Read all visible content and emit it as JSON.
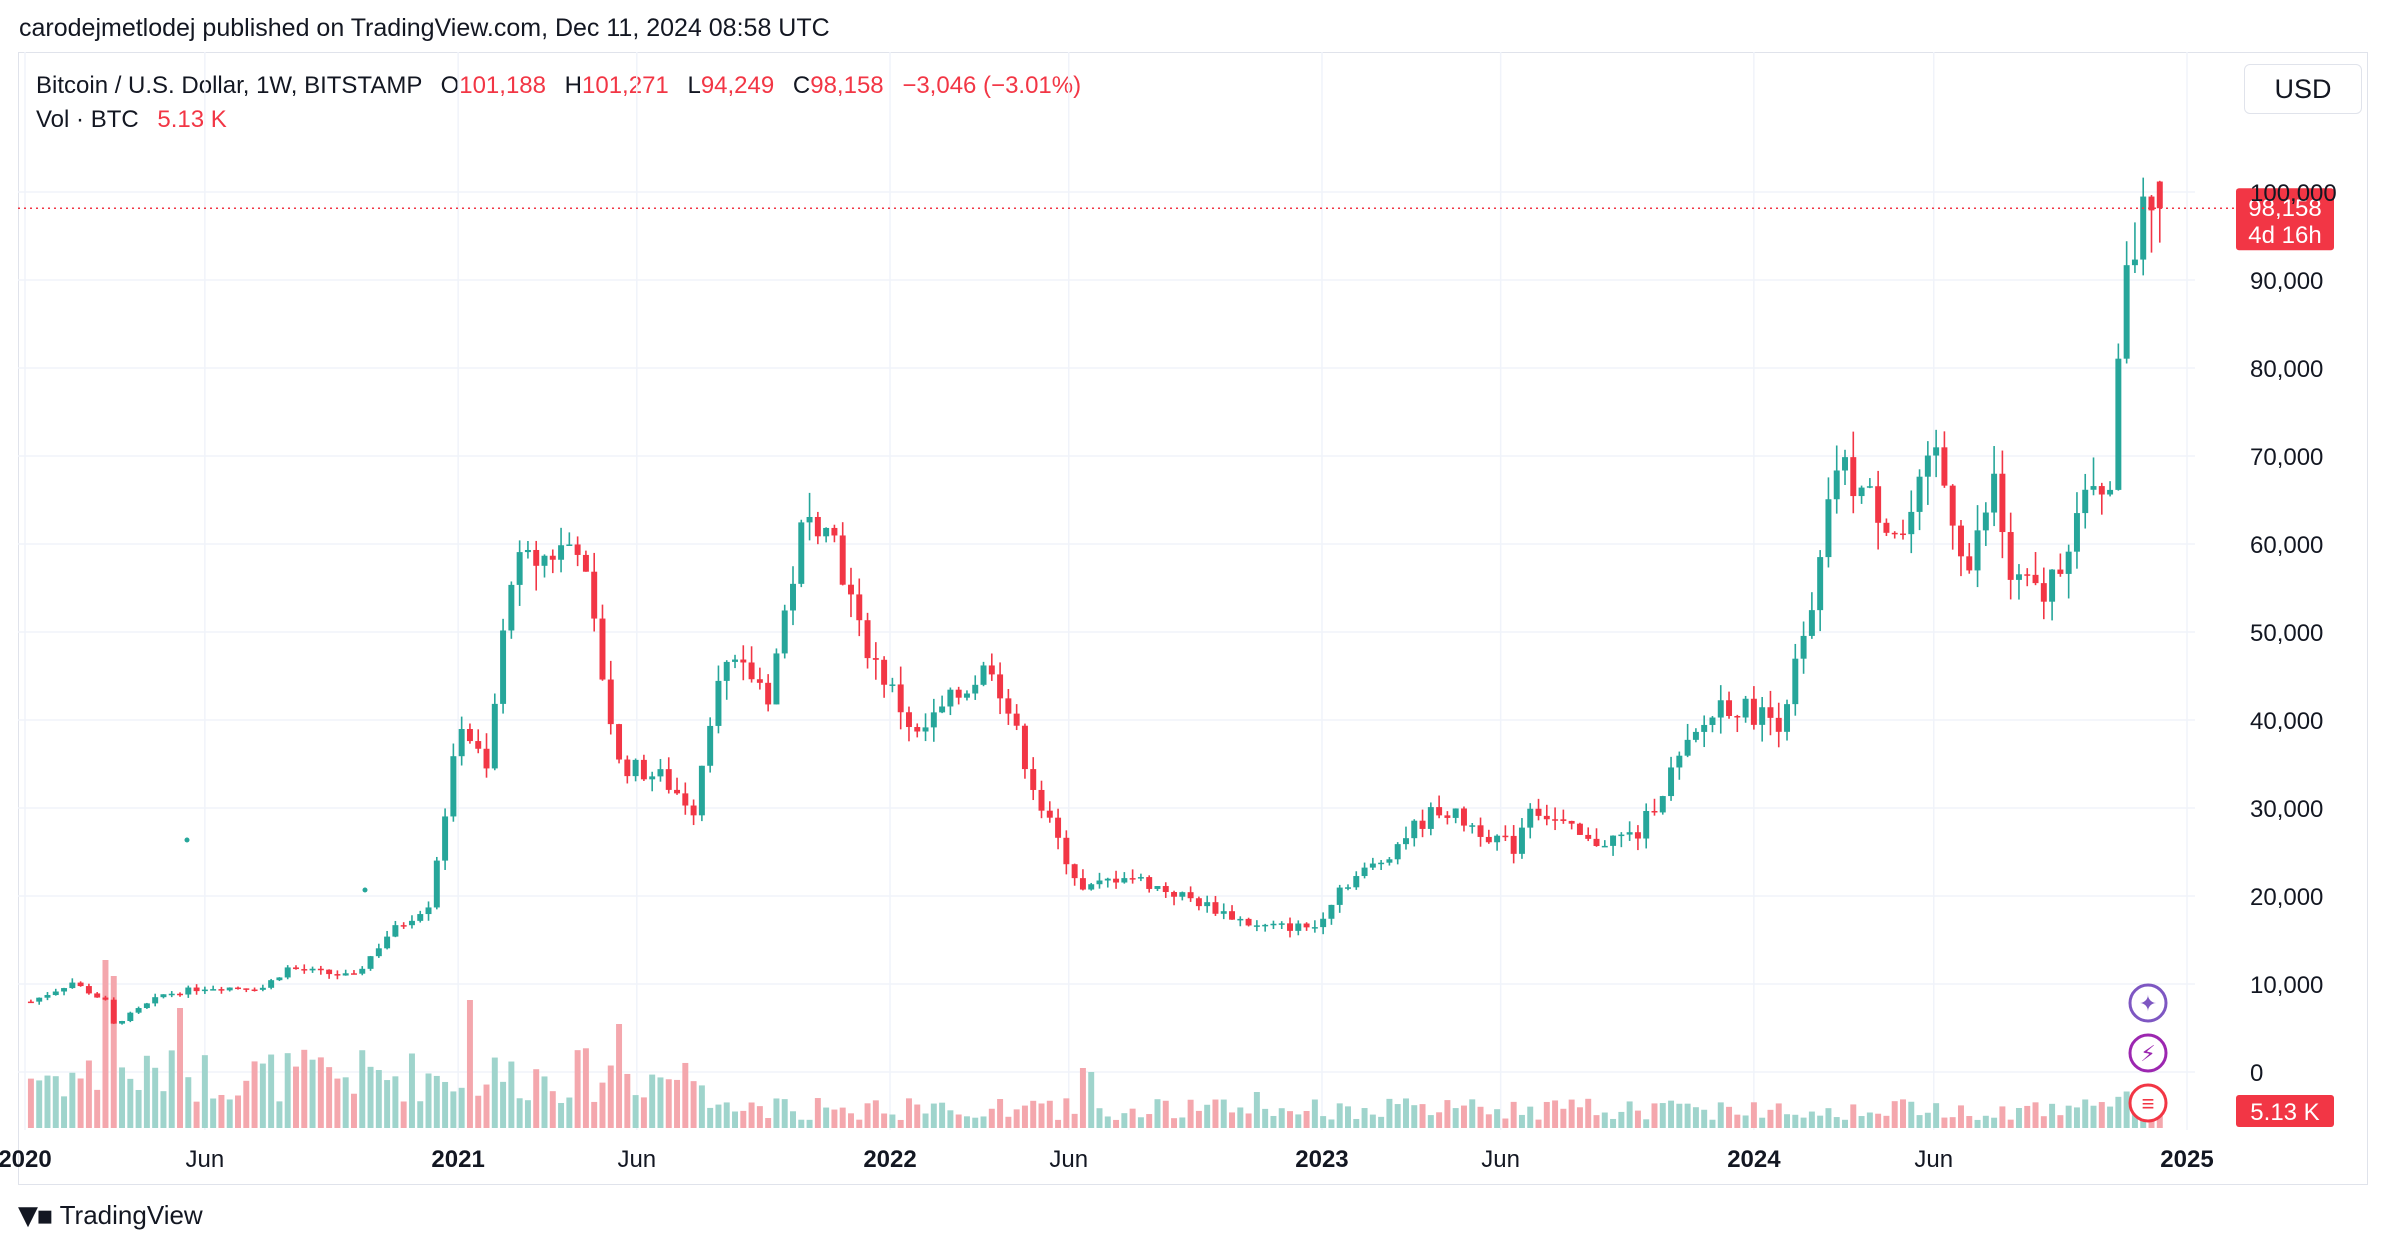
{
  "header": {
    "published": "carodejmetlodej published on TradingView.com, Dec 11, 2024 08:58 UTC"
  },
  "legend": {
    "symbol": "Bitcoin / U.S. Dollar, 1W, BITSTAMP",
    "open_label": "O",
    "open": "101,188",
    "high_label": "H",
    "high": "101,271",
    "low_label": "L",
    "low": "94,249",
    "close_label": "C",
    "close": "98,158",
    "change": "−3,046 (−3.01%)",
    "volume_label": "Vol · BTC",
    "volume": "5.13 K"
  },
  "currency": "USD",
  "footer": {
    "brand": "TradingView"
  },
  "price_badge": {
    "price": "98,158",
    "countdown": "4d 16h"
  },
  "volume_badge": "5.13 K",
  "colors": {
    "up": "#26a69a",
    "down": "#f23645",
    "vol_up": "#9fd4cc",
    "vol_down": "#f4a7ad",
    "grid": "#f0f3fa"
  },
  "chart_data": {
    "type": "candlestick",
    "interval": "1W",
    "y_ticks": [
      "100,000",
      "90,000",
      "80,000",
      "70,000",
      "60,000",
      "50,000",
      "40,000",
      "30,000",
      "20,000",
      "10,000",
      "0"
    ],
    "y_tick_values": [
      100000,
      90000,
      80000,
      70000,
      60000,
      50000,
      40000,
      30000,
      20000,
      10000,
      0
    ],
    "x_ticks": [
      {
        "label": "2020",
        "date": "2020-01-01",
        "bold": true
      },
      {
        "label": "Jun",
        "date": "2020-06-01",
        "bold": false
      },
      {
        "label": "2021",
        "date": "2021-01-01",
        "bold": true
      },
      {
        "label": "Jun",
        "date": "2021-06-01",
        "bold": false
      },
      {
        "label": "2022",
        "date": "2022-01-01",
        "bold": true
      },
      {
        "label": "Jun",
        "date": "2022-06-01",
        "bold": false
      },
      {
        "label": "2023",
        "date": "2023-01-01",
        "bold": true
      },
      {
        "label": "Jun",
        "date": "2023-06-01",
        "bold": false
      },
      {
        "label": "2024",
        "date": "2024-01-01",
        "bold": true
      },
      {
        "label": "Jun",
        "date": "2024-06-01",
        "bold": false
      },
      {
        "label": "2025",
        "date": "2025-01-01",
        "bold": true
      }
    ],
    "last_price": 98158,
    "close_path": [
      [
        "2020-01-06",
        8000
      ],
      [
        "2020-02-10",
        10200
      ],
      [
        "2020-03-09",
        8000
      ],
      [
        "2020-03-16",
        5400
      ],
      [
        "2020-04-27",
        8800
      ],
      [
        "2020-06-01",
        9600
      ],
      [
        "2020-07-20",
        9600
      ],
      [
        "2020-08-10",
        11800
      ],
      [
        "2020-10-05",
        10800
      ],
      [
        "2020-11-02",
        15500
      ],
      [
        "2020-12-07",
        19200
      ],
      [
        "2021-01-04",
        40000
      ],
      [
        "2021-01-25",
        34000
      ],
      [
        "2021-02-15",
        57000
      ],
      [
        "2021-03-15",
        58500
      ],
      [
        "2021-04-12",
        60500
      ],
      [
        "2021-05-17",
        35000
      ],
      [
        "2021-06-21",
        33500
      ],
      [
        "2021-07-19",
        30000
      ],
      [
        "2021-08-09",
        46000
      ],
      [
        "2021-09-06",
        45000
      ],
      [
        "2021-09-20",
        43000
      ],
      [
        "2021-10-18",
        61000
      ],
      [
        "2021-11-08",
        64000
      ],
      [
        "2021-12-06",
        50000
      ],
      [
        "2022-01-24",
        38000
      ],
      [
        "2022-02-21",
        42000
      ],
      [
        "2022-03-28",
        46500
      ],
      [
        "2022-05-09",
        30000
      ],
      [
        "2022-06-13",
        20500
      ],
      [
        "2022-07-18",
        22500
      ],
      [
        "2022-08-15",
        21000
      ],
      [
        "2022-09-19",
        19300
      ],
      [
        "2022-11-07",
        16500
      ],
      [
        "2022-12-26",
        16500
      ],
      [
        "2023-01-16",
        21000
      ],
      [
        "2023-02-20",
        24000
      ],
      [
        "2023-03-13",
        27000
      ],
      [
        "2023-04-10",
        30000
      ],
      [
        "2023-05-22",
        27000
      ],
      [
        "2023-06-12",
        25500
      ],
      [
        "2023-06-26",
        30500
      ],
      [
        "2023-08-14",
        26000
      ],
      [
        "2023-09-25",
        27000
      ],
      [
        "2023-10-23",
        34000
      ],
      [
        "2023-12-04",
        42000
      ],
      [
        "2024-01-22",
        40000
      ],
      [
        "2024-02-19",
        51500
      ],
      [
        "2024-03-11",
        69000
      ],
      [
        "2024-04-15",
        64000
      ],
      [
        "2024-05-06",
        61000
      ],
      [
        "2024-06-03",
        70000
      ],
      [
        "2024-07-01",
        57000
      ],
      [
        "2024-07-22",
        67000
      ],
      [
        "2024-08-05",
        56000
      ],
      [
        "2024-09-02",
        54000
      ],
      [
        "2024-09-30",
        63000
      ],
      [
        "2024-10-28",
        68000
      ],
      [
        "2024-11-11",
        90000
      ],
      [
        "2024-11-25",
        97000
      ],
      [
        "2024-12-02",
        101188
      ],
      [
        "2024-12-09",
        98158
      ]
    ],
    "volume_spikes": [
      [
        "2020-03-09",
        42
      ],
      [
        "2020-03-16",
        38
      ],
      [
        "2020-05-11",
        30
      ],
      [
        "2021-01-11",
        32
      ],
      [
        "2021-05-17",
        26
      ],
      [
        "2022-06-13",
        15
      ],
      [
        "2022-06-20",
        14
      ],
      [
        "2022-11-07",
        9
      ]
    ],
    "last_bar": {
      "date": "2024-12-09",
      "open": 101188,
      "high": 101271,
      "low": 94249,
      "close": 98158,
      "volume_btc": 5130
    }
  }
}
